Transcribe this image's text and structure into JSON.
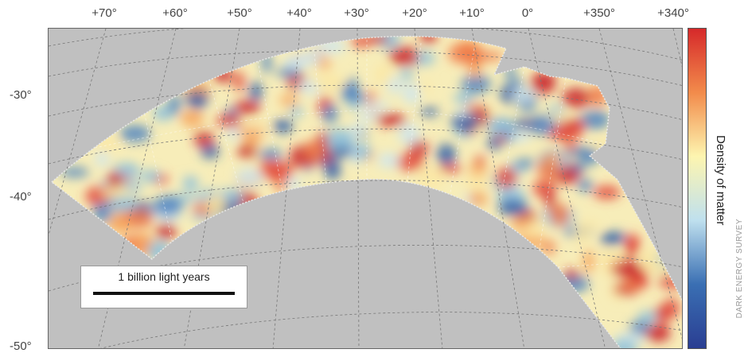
{
  "ra_labels": [
    "+70°",
    "+60°",
    "+50°",
    "+40°",
    "+30°",
    "+20°",
    "+10°",
    "0°",
    "+350°",
    "+340°"
  ],
  "dec_labels": [
    "-30°",
    "-40°",
    "-50°"
  ],
  "scale": {
    "label": "1 billion light years"
  },
  "colorbar": {
    "label": "Density of matter",
    "colors": [
      "#d6292a",
      "#f28b4b",
      "#fdf5b0",
      "#bfe0ee",
      "#3a6fb3",
      "#2a3e92"
    ]
  },
  "credit": "DARK ENERGY SURVEY"
}
